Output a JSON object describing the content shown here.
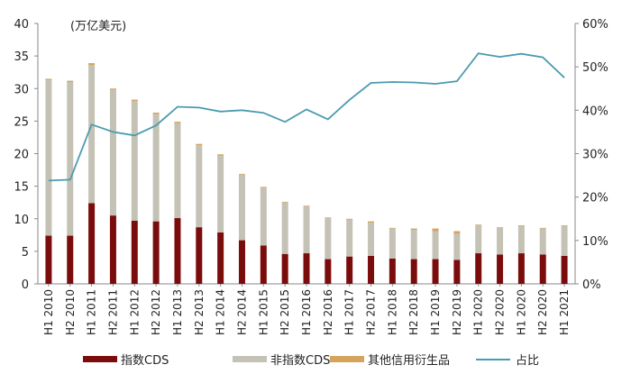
{
  "chart_data": {
    "type": "bar",
    "subtype": "stacked bar with line on secondary axis",
    "unit_label": "(万亿美元)",
    "categories": [
      "H1 2010",
      "H2 2010",
      "H1 2011",
      "H2 2011",
      "H1 2012",
      "H2 2012",
      "H1 2013",
      "H2 2013",
      "H1 2014",
      "H2 2014",
      "H1 2015",
      "H2 2015",
      "H1 2016",
      "H2 2016",
      "H1 2017",
      "H2 2017",
      "H1 2018",
      "H2 2018",
      "H1 2019",
      "H2 2019",
      "H1 2020",
      "H2 2020",
      "H1 2020",
      "H2 2020",
      "H1 2021"
    ],
    "series": [
      {
        "name": "指数CDS",
        "kind": "bar",
        "axis": "left",
        "color": "#7b0c0c",
        "values": [
          7.4,
          7.4,
          12.4,
          10.5,
          9.7,
          9.6,
          10.1,
          8.7,
          7.9,
          6.7,
          5.9,
          4.6,
          4.7,
          3.8,
          4.2,
          4.3,
          3.9,
          3.8,
          3.8,
          3.7,
          4.7,
          4.5,
          4.7,
          4.5,
          4.3
        ]
      },
      {
        "name": "非指数CDS",
        "kind": "bar",
        "axis": "left",
        "color": "#c4c2b4",
        "values": [
          23.9,
          23.6,
          21.2,
          19.3,
          18.4,
          16.5,
          14.6,
          12.6,
          11.8,
          10.1,
          8.9,
          7.9,
          7.2,
          6.3,
          5.7,
          5.1,
          4.6,
          4.5,
          4.3,
          4.0,
          4.3,
          4.1,
          4.2,
          4.0,
          4.6
        ]
      },
      {
        "name": "其他信用衍生品",
        "kind": "bar",
        "axis": "left",
        "color": "#d4a45c",
        "values": [
          0.2,
          0.2,
          0.3,
          0.2,
          0.2,
          0.2,
          0.2,
          0.2,
          0.2,
          0.1,
          0.1,
          0.1,
          0.1,
          0.1,
          0.1,
          0.2,
          0.1,
          0.2,
          0.4,
          0.4,
          0.1,
          0.1,
          0.1,
          0.1,
          0.1
        ]
      },
      {
        "name": "占比",
        "kind": "line",
        "axis": "right",
        "color": "#4a9bb0",
        "values": [
          23.8,
          24.0,
          36.7,
          35.0,
          34.2,
          36.5,
          40.8,
          40.6,
          39.7,
          40.0,
          39.4,
          37.3,
          40.2,
          37.9,
          42.4,
          46.3,
          46.5,
          46.4,
          46.1,
          46.7,
          53.1,
          52.3,
          53.0,
          52.2,
          47.5
        ]
      }
    ],
    "y_left": {
      "min": 0,
      "max": 40,
      "ticks": [
        "0",
        "5",
        "10",
        "15",
        "20",
        "25",
        "30",
        "35",
        "40"
      ]
    },
    "y_right": {
      "min": 0,
      "max": 60,
      "ticks": [
        "0%",
        "10%",
        "20%",
        "30%",
        "40%",
        "50%",
        "60%"
      ]
    },
    "legend_position": "bottom",
    "grid": false
  }
}
